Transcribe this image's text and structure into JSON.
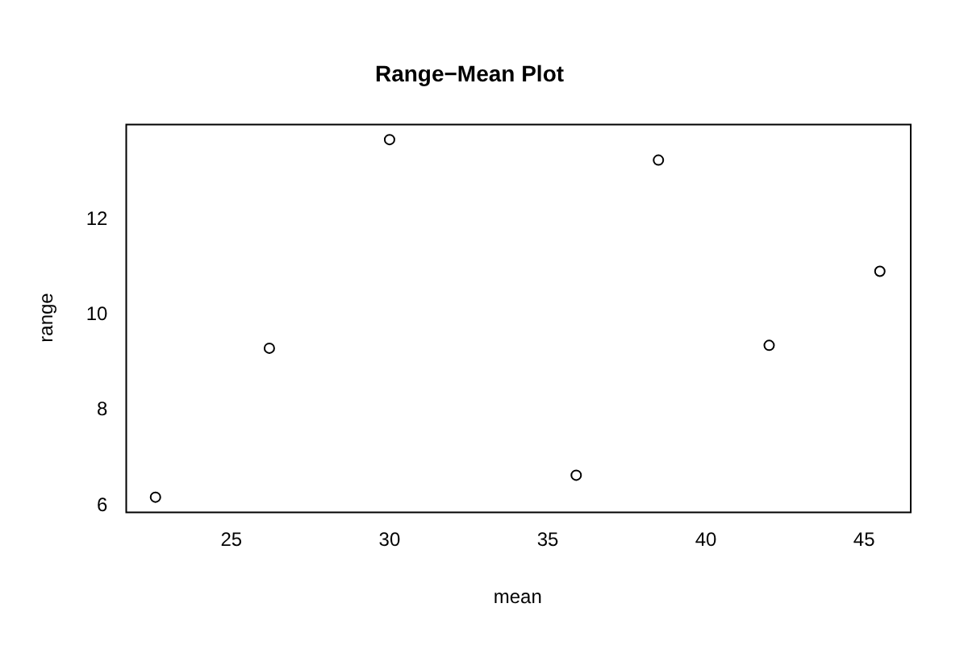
{
  "chart_data": {
    "type": "scatter",
    "title": "Range−Mean Plot",
    "xlabel": "mean",
    "ylabel": "range",
    "x": [
      22.6,
      26.2,
      30.0,
      35.9,
      38.5,
      42.0,
      45.5
    ],
    "values": [
      6.18,
      9.3,
      13.67,
      6.64,
      13.24,
      9.36,
      10.91
    ],
    "color": "#000000",
    "marker": "circle",
    "grid": false,
    "legend": false,
    "xlim": [
      21.65,
      46.45
    ],
    "xticks": [
      25,
      30,
      35,
      40,
      45
    ],
    "ylim": [
      5.88,
      14.0
    ],
    "yticks": [
      6,
      8,
      10,
      12
    ]
  }
}
